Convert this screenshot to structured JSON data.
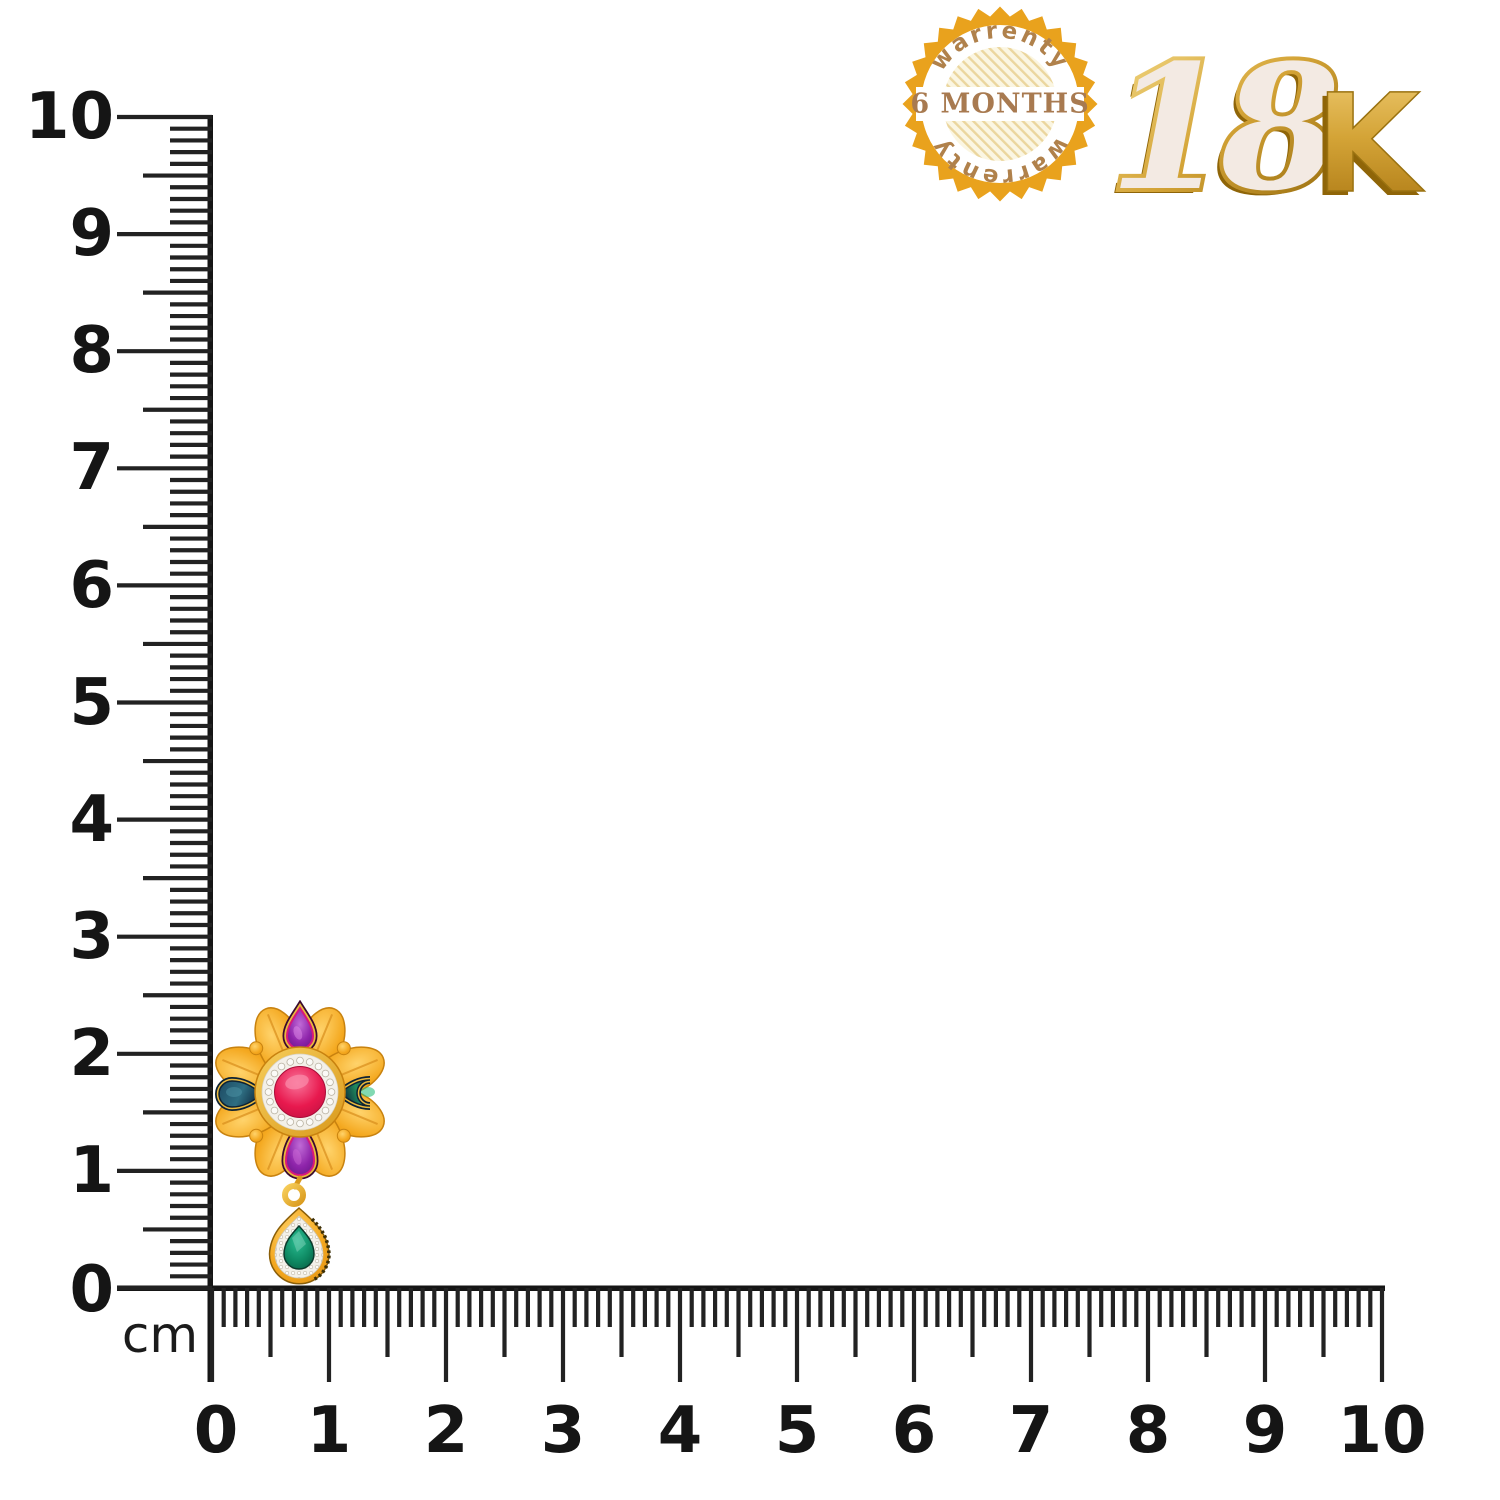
{
  "ruler": {
    "unit": "cm",
    "vertical_labels": [
      "10",
      "9",
      "8",
      "7",
      "6",
      "5",
      "4",
      "3",
      "2",
      "1",
      "0"
    ],
    "horizontal_labels": [
      "0",
      "1",
      "2",
      "3",
      "4",
      "5",
      "6",
      "7",
      "8",
      "9",
      "10"
    ],
    "tick_color": "#222222",
    "line_color": "#151515"
  },
  "badge": {
    "arc_text_top": "warrenty",
    "arc_text_bottom": "warrenty",
    "center_text": "6 MONTHS",
    "colors": {
      "ring": "#E9A21D",
      "arc_text": "#B0814B",
      "hatch_bg": "#FBF6E2",
      "hatch_line": "#EBD69E",
      "band": "#FFFFFF",
      "center_text": "#A87A50"
    }
  },
  "karat_mark": {
    "digits": "18",
    "letter": "K",
    "gold": "#D4A437",
    "gold_dark": "#8F6508",
    "gold_light": "#F6DE8D",
    "face": "#F3EAE3"
  },
  "earring": {
    "description": "22K-style gold flower stud earring with ruby centre, purple and teal teardrop stones and emerald drop dangle",
    "colors": {
      "gold": "#F4A81F",
      "gold_light": "#FFD36B",
      "gold_dark": "#DD8C0F",
      "bezel_gold": "#E9B83C",
      "ruby": "#E8194E",
      "ruby_light": "#F9759B",
      "purple": "#8E24AA",
      "magenta": "#D6187C",
      "teal_navy": "#1D4A63",
      "teal_green": "#1F8A5C",
      "emerald": "#0E8A63",
      "halo_white": "#F3F0E9"
    }
  }
}
